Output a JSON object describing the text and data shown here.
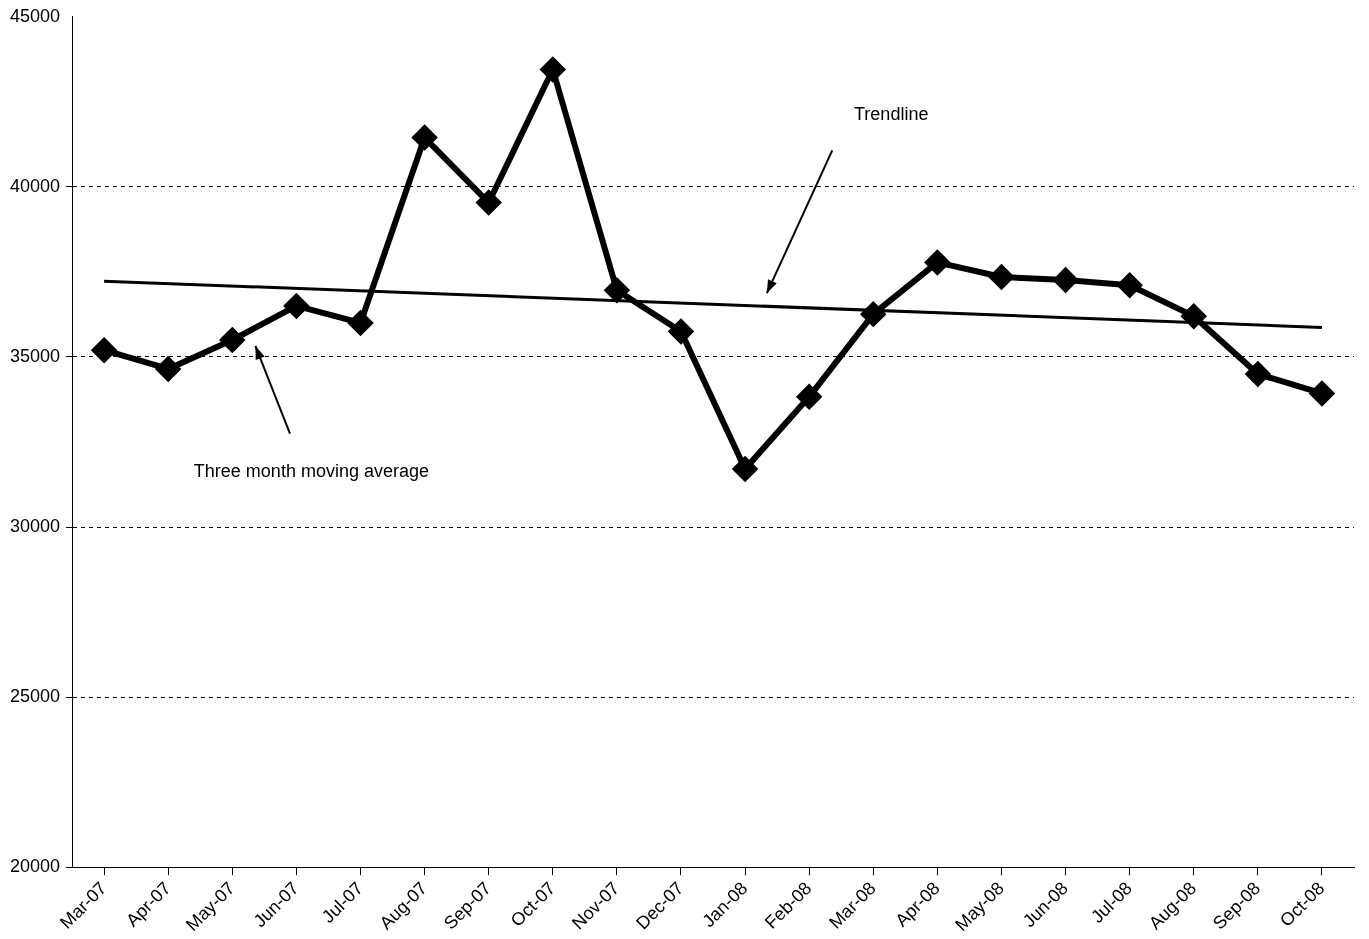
{
  "chart_data": {
    "type": "line",
    "categories": [
      "Mar-07",
      "Apr-07",
      "May-07",
      "Jun-07",
      "Jul-07",
      "Aug-07",
      "Sep-07",
      "Oct-07",
      "Nov-07",
      "Dec-07",
      "Jan-08",
      "Feb-08",
      "Mar-08",
      "Apr-08",
      "May-08",
      "Jun-08",
      "Jul-08",
      "Aug-08",
      "Sep-08",
      "Oct-08"
    ],
    "series": [
      {
        "color": "#000000",
        "marker": "diamond",
        "values": [
          35200,
          34650,
          35500,
          36500,
          36000,
          41450,
          39540,
          43450,
          36960,
          35750,
          31710,
          33830,
          36260,
          37780,
          37350,
          37260,
          37110,
          36200,
          34500,
          33930
        ]
      },
      {
        "type": "line",
        "color": "#000000",
        "marker": "none",
        "x": [
          "Mar-07",
          "Oct-08"
        ],
        "values": [
          37230,
          35870
        ]
      }
    ],
    "ylim": [
      20000,
      45000
    ],
    "yticks": [
      20000,
      25000,
      30000,
      35000,
      40000,
      45000
    ],
    "grid": "y",
    "legend": false,
    "annotations": [
      "Trendline",
      "Three month moving average"
    ]
  }
}
